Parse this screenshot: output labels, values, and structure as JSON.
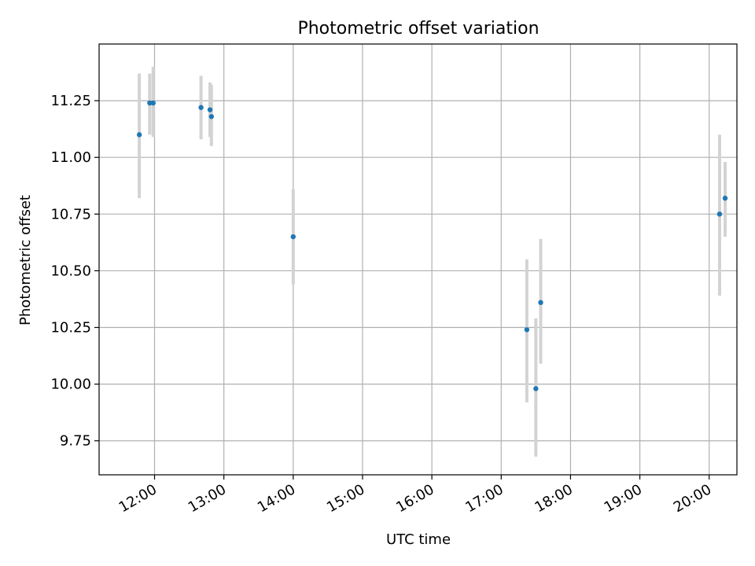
{
  "chart_data": {
    "type": "scatter",
    "title": "Photometric offset variation",
    "xlabel": "UTC time",
    "ylabel": "Photometric offset",
    "x_unit": "hours (UTC)",
    "xlim": [
      11.2,
      20.4
    ],
    "ylim": [
      9.6,
      11.5
    ],
    "grid": true,
    "x_ticks": [
      12,
      13,
      14,
      15,
      16,
      17,
      18,
      19,
      20
    ],
    "x_tick_labels": [
      "12:00",
      "13:00",
      "14:00",
      "15:00",
      "16:00",
      "17:00",
      "18:00",
      "19:00",
      "20:00"
    ],
    "y_ticks": [
      9.75,
      10.0,
      10.25,
      10.5,
      10.75,
      11.0,
      11.25
    ],
    "y_tick_labels": [
      "9.75",
      "10.00",
      "10.25",
      "10.50",
      "10.75",
      "11.00",
      "11.25"
    ],
    "marker_color": "#1f77b4",
    "errorbar_color": "#d3d3d3",
    "points": [
      {
        "x": 11.78,
        "y": 11.1,
        "ylo": 10.82,
        "yhi": 11.37
      },
      {
        "x": 11.93,
        "y": 11.24,
        "ylo": 11.1,
        "yhi": 11.37
      },
      {
        "x": 11.98,
        "y": 11.24,
        "ylo": 11.09,
        "yhi": 11.4
      },
      {
        "x": 12.67,
        "y": 11.22,
        "ylo": 11.08,
        "yhi": 11.36
      },
      {
        "x": 12.8,
        "y": 11.21,
        "ylo": 11.09,
        "yhi": 11.33
      },
      {
        "x": 12.82,
        "y": 11.18,
        "ylo": 11.05,
        "yhi": 11.32
      },
      {
        "x": 14.0,
        "y": 10.65,
        "ylo": 10.44,
        "yhi": 10.86
      },
      {
        "x": 17.37,
        "y": 10.24,
        "ylo": 9.92,
        "yhi": 10.55
      },
      {
        "x": 17.5,
        "y": 9.98,
        "ylo": 9.68,
        "yhi": 10.29
      },
      {
        "x": 17.57,
        "y": 10.36,
        "ylo": 10.09,
        "yhi": 10.64
      },
      {
        "x": 20.15,
        "y": 10.75,
        "ylo": 10.39,
        "yhi": 11.1
      },
      {
        "x": 20.23,
        "y": 10.82,
        "ylo": 10.65,
        "yhi": 10.98
      }
    ]
  }
}
